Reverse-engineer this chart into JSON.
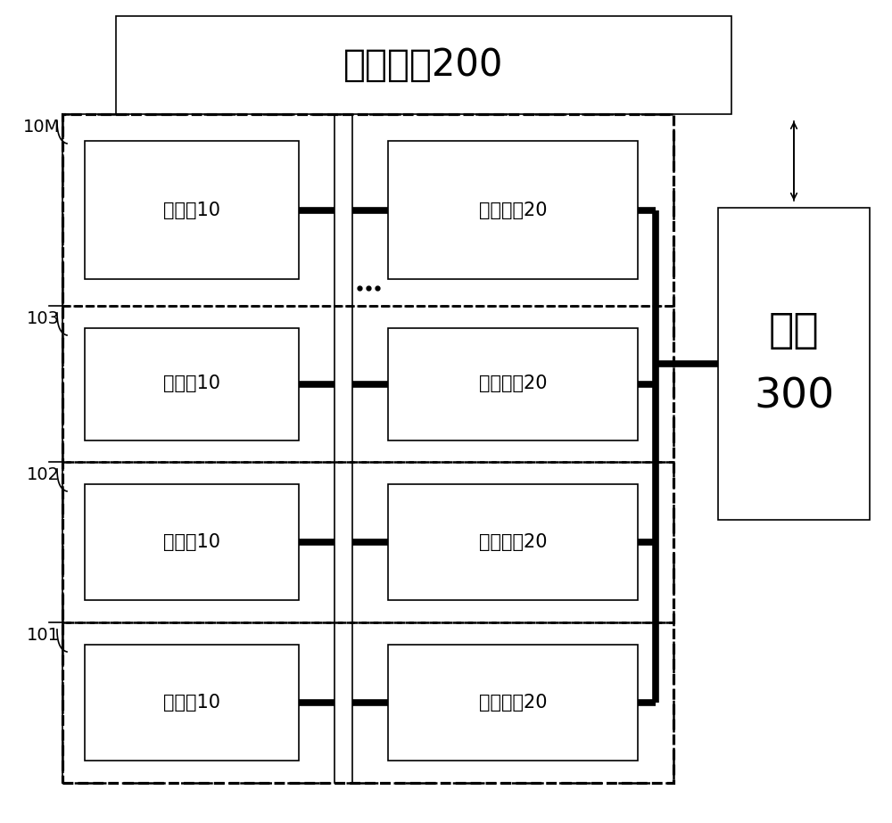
{
  "title": "监控模块200",
  "grid_label": "电网\n300",
  "battery_label": "电池组10",
  "converter_label": "双向变流20",
  "unit_labels": [
    "101",
    "102",
    "103",
    "10M"
  ],
  "bg_color": "#ffffff",
  "lw_thick": 5.5,
  "lw_thin": 1.2,
  "lw_dash": 1.8,
  "font_size_title": 30,
  "font_size_label": 15,
  "font_size_unit": 14
}
